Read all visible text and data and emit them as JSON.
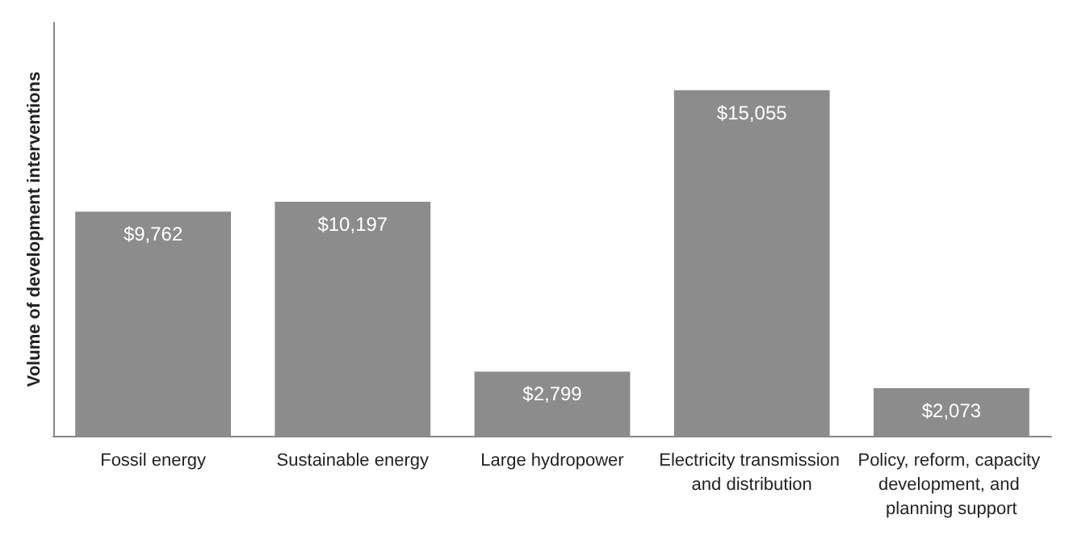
{
  "chart_data": {
    "type": "bar",
    "ylabel": "Volume of development interventions",
    "categories": [
      "Fossil energy",
      "Sustainable energy",
      "Large hydropower",
      "Electricity transmission and distribution",
      "Policy, reform, capacity development, and planning support"
    ],
    "values": [
      9762,
      10197,
      2799,
      15055,
      2073
    ],
    "value_labels": [
      "$9,762",
      "$10,197",
      "$2,799",
      "$15,055",
      "$2,073"
    ],
    "color": "#8c8c8c"
  }
}
